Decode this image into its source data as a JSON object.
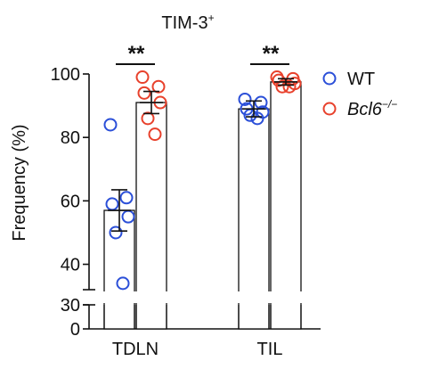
{
  "chart_data": {
    "type": "bar",
    "title": "TIM-3",
    "title_sup": "+",
    "ylabel": "Frequency (%)",
    "categories": [
      "TDLN",
      "TIL"
    ],
    "y_ticks_upper": [
      40,
      60,
      80,
      100
    ],
    "y_ticks_lower": [
      0,
      30
    ],
    "axis_break": true,
    "ylim_upper": [
      32,
      100
    ],
    "ylim_lower": [
      0,
      30
    ],
    "series": [
      {
        "name": "WT",
        "color": "#2b4fd8",
        "italic": false,
        "means": [
          57,
          89
        ],
        "sem": [
          6.5,
          2.5
        ],
        "points": [
          [
            84,
            61,
            59,
            55,
            50,
            34
          ],
          [
            92,
            91,
            89,
            88,
            87,
            86
          ]
        ]
      },
      {
        "name": "Bcl6",
        "name_sup": "−/−",
        "color": "#e8412c",
        "italic": true,
        "means": [
          91,
          97.5
        ],
        "sem": [
          3.5,
          1
        ],
        "points": [
          [
            99,
            96,
            94,
            91,
            86,
            81
          ],
          [
            99,
            98.5,
            98,
            97,
            96,
            96
          ]
        ]
      }
    ],
    "significance": [
      "**",
      "**"
    ],
    "legend": "right",
    "grid": false
  }
}
